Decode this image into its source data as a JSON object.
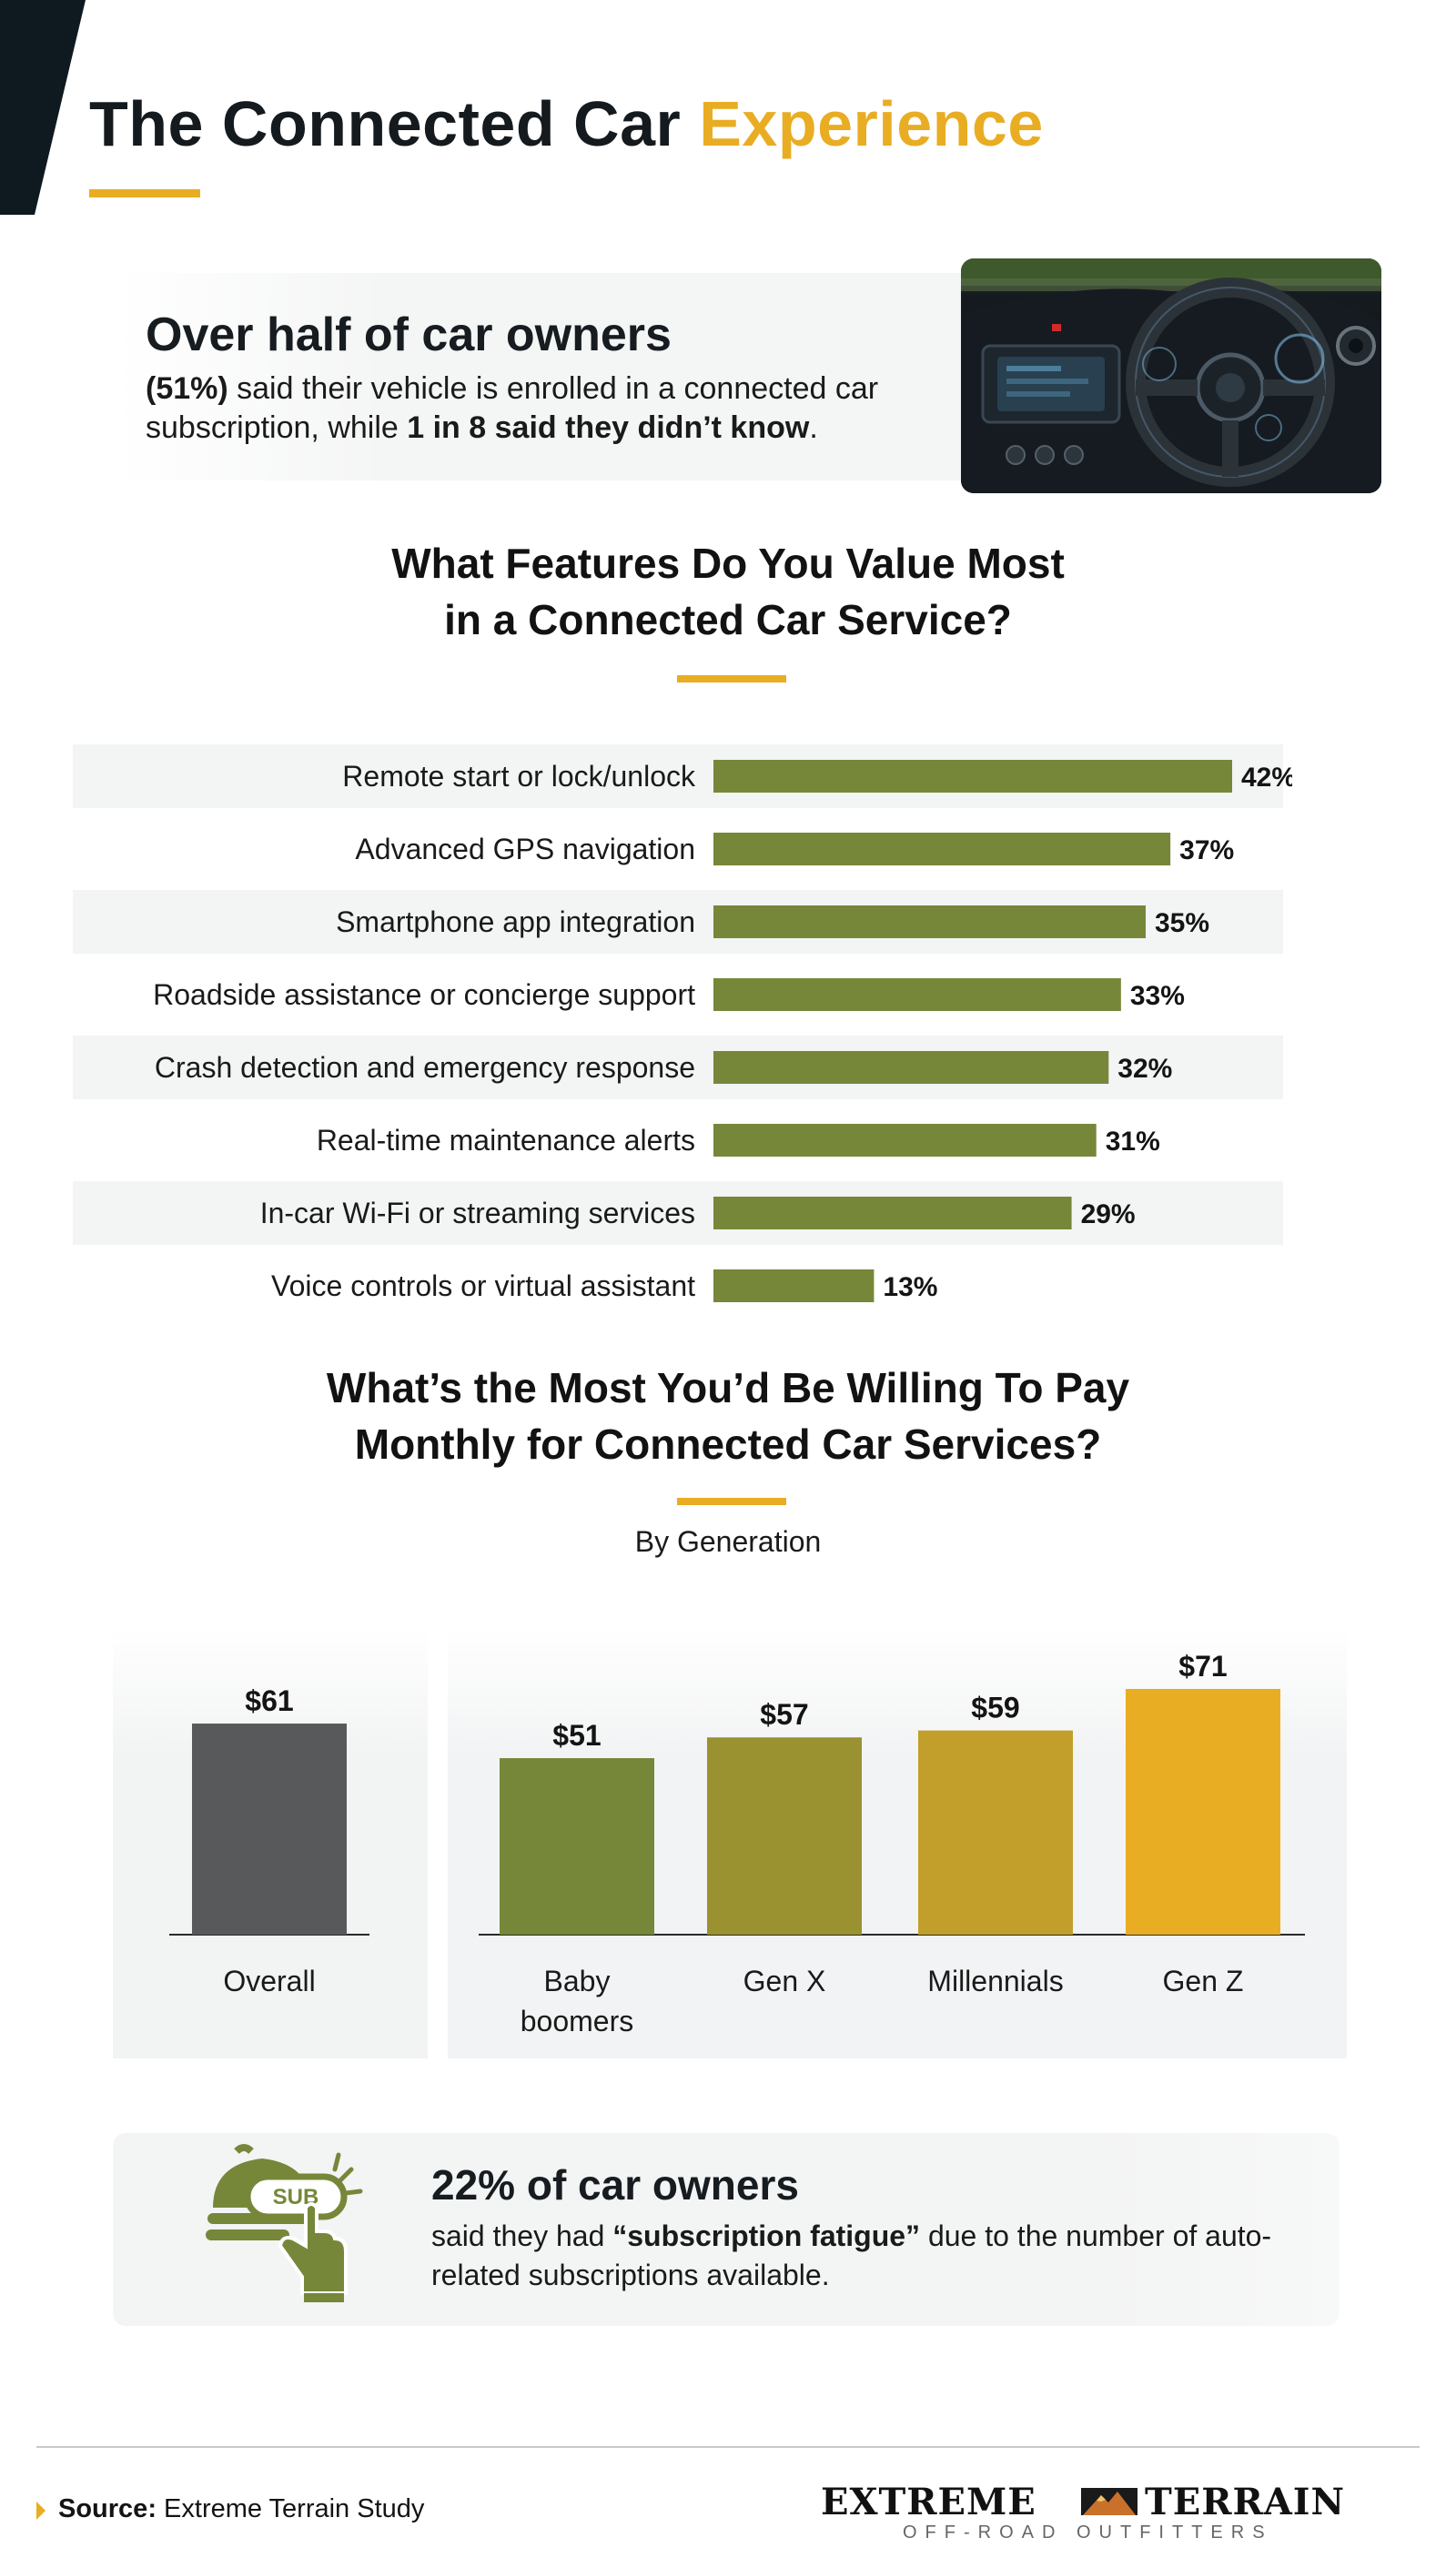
{
  "header": {
    "title_part1": "The Connected Car",
    "title_part2": "Experience",
    "accent_color": "#e9ad23",
    "dark_color": "#0e1a20"
  },
  "intro": {
    "headline": "Over half of car owners",
    "text_bold1": "(51%)",
    "text_mid": " said their vehicle is enrolled in a connected car subscription, while ",
    "text_bold2": "1 in 8 said they didn’t know",
    "text_end": ".",
    "image_icon": "car-dashboard-photo"
  },
  "features_section": {
    "title_line1": "What Features Do You Value Most",
    "title_line2": "in a Connected Car Service?"
  },
  "pay_section": {
    "title_line1": "What’s the Most You’d Be Willing To Pay",
    "title_line2": "Monthly for Connected Car Services?",
    "subtitle": "By Generation"
  },
  "chart_data": [
    {
      "type": "bar",
      "orientation": "horizontal",
      "categories": [
        "Remote start or lock/unlock",
        "Advanced GPS navigation",
        "Smartphone app integration",
        "Roadside assistance or concierge support",
        "Crash detection and emergency response",
        "Real-time maintenance alerts",
        "In-car Wi-Fi or streaming services",
        "Voice controls or virtual assistant"
      ],
      "values": [
        42,
        37,
        35,
        33,
        32,
        31,
        29,
        13
      ],
      "value_labels": [
        "42%",
        "37%",
        "35%",
        "33%",
        "32%",
        "31%",
        "29%",
        "13%"
      ],
      "xlim": [
        0,
        42
      ],
      "bar_color": "#76873a",
      "grid": false
    },
    {
      "type": "bar",
      "orientation": "vertical",
      "categories": [
        "Overall",
        "Baby boomers",
        "Gen X",
        "Millennials",
        "Gen Z"
      ],
      "category_lines": [
        [
          "Overall"
        ],
        [
          "Baby",
          "boomers"
        ],
        [
          "Gen X"
        ],
        [
          "Millennials"
        ],
        [
          "Gen Z"
        ]
      ],
      "values": [
        61,
        51,
        57,
        59,
        71
      ],
      "value_labels": [
        "$61",
        "$51",
        "$57",
        "$59",
        "$71"
      ],
      "ylim": [
        0,
        71
      ],
      "colors": [
        "#58595b",
        "#76873a",
        "#9a9131",
        "#c29f2a",
        "#e9ad23"
      ],
      "grid": false
    }
  ],
  "fatigue": {
    "headline": "22% of car owners",
    "text_before": "said they had ",
    "text_bold": "“subscription fatigue”",
    "text_after": " due to the number of auto-related subscriptions available.",
    "icon_badge": "SUB",
    "icon_color": "#76873a",
    "icon": "subscription-bell-hand-icon"
  },
  "footer": {
    "source_label": "Source:",
    "source_text": " Extreme Terrain Study",
    "brand_left": "EXTREME",
    "brand_right": "TERRAIN",
    "brand_tagline": "OFF-ROAD OUTFITTERS"
  }
}
